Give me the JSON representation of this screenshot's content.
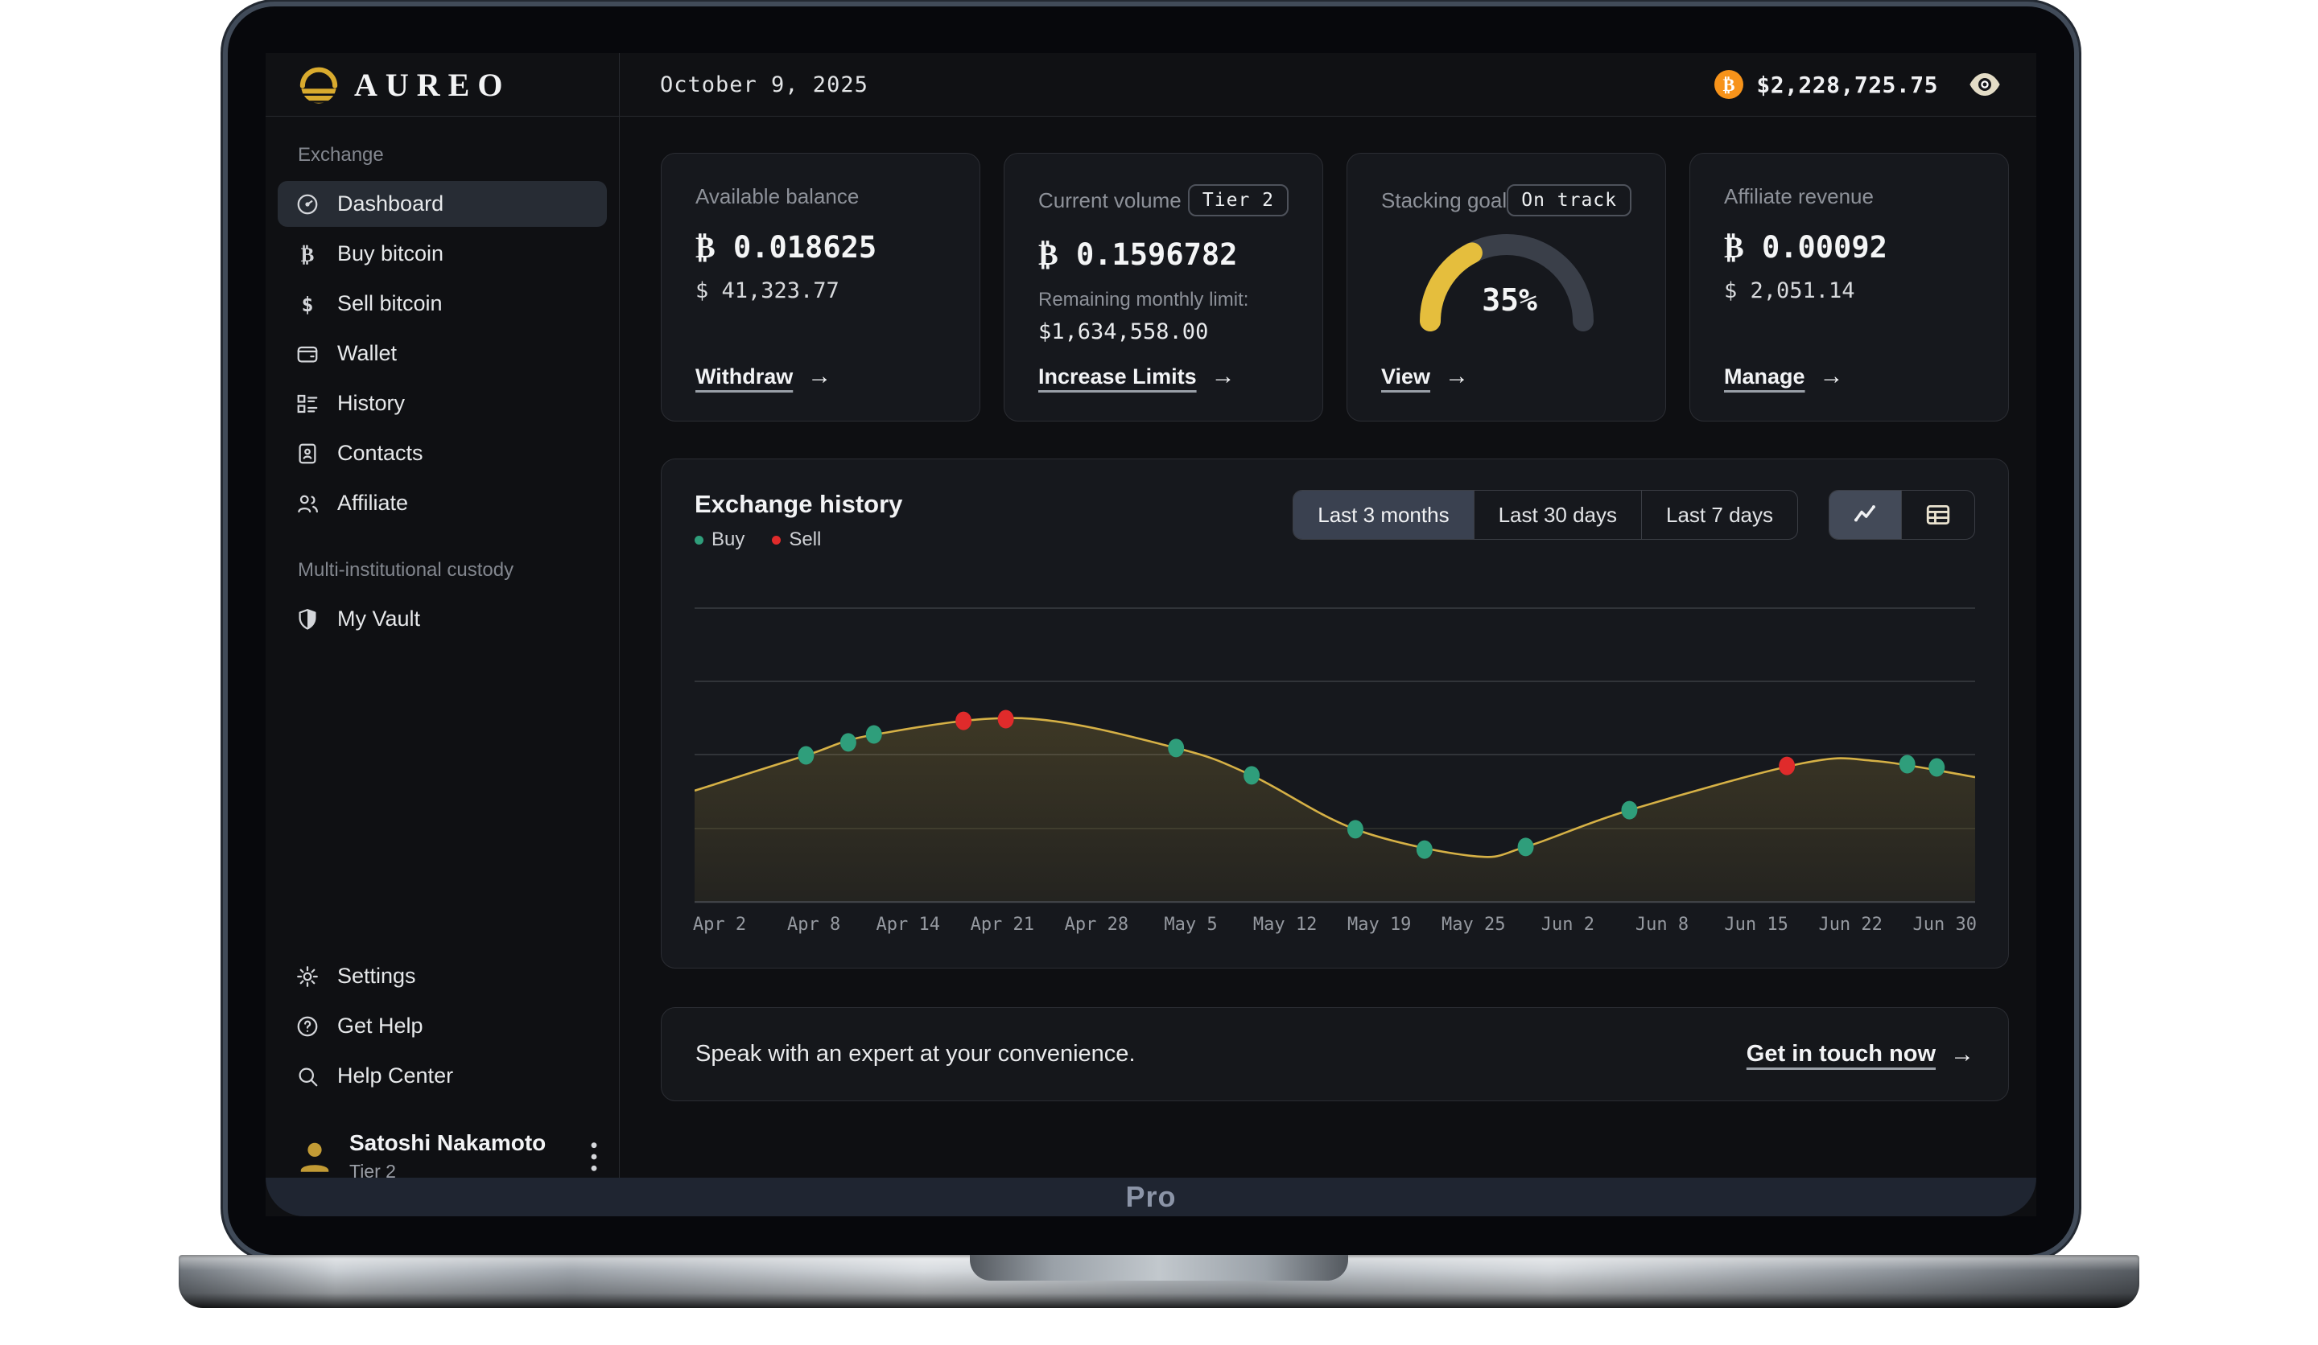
{
  "brand": {
    "name": "AUREO"
  },
  "topbar": {
    "date": "October 9, 2025",
    "total_usd": "$2,228,725.75"
  },
  "ui": {
    "arrow": "→"
  },
  "sidebar": {
    "sections": [
      {
        "label": "Exchange",
        "items": [
          {
            "label": "Dashboard"
          },
          {
            "label": "Buy bitcoin"
          },
          {
            "label": "Sell bitcoin"
          },
          {
            "label": "Wallet"
          },
          {
            "label": "History"
          },
          {
            "label": "Contacts"
          },
          {
            "label": "Affiliate"
          }
        ]
      },
      {
        "label": "Multi-institutional custody",
        "items": [
          {
            "label": "My Vault"
          }
        ]
      }
    ],
    "footer_items": [
      {
        "label": "Settings"
      },
      {
        "label": "Get Help"
      },
      {
        "label": "Help Center"
      }
    ],
    "user": {
      "name": "Satoshi Nakamoto",
      "tier": "Tier 2"
    }
  },
  "cards": [
    {
      "title": "Available balance",
      "btc": "₿ 0.018625",
      "usd": "$ 41,323.77",
      "link": "Withdraw"
    },
    {
      "title": "Current volume",
      "badge": "Tier 2",
      "btc": "₿ 0.1596782",
      "sub_label": "Remaining monthly limit:",
      "sub_value": "$1,634,558.00",
      "link": "Increase Limits"
    },
    {
      "title": "Stacking goal",
      "badge": "On track",
      "gauge_percent": 35,
      "gauge_label": "35%",
      "link": "View"
    },
    {
      "title": "Affiliate revenue",
      "btc": "₿ 0.00092",
      "usd": "$ 2,051.14",
      "link": "Manage"
    }
  ],
  "chart_panel": {
    "title": "Exchange history",
    "legend": [
      {
        "label": "Buy",
        "color": "#2f9e7b"
      },
      {
        "label": "Sell",
        "color": "#e02b2b"
      }
    ],
    "range_tabs": [
      {
        "label": "Last 3 months",
        "active": true
      },
      {
        "label": "Last 30 days",
        "active": false
      },
      {
        "label": "Last 7 days",
        "active": false
      }
    ]
  },
  "chart_data": {
    "type": "line",
    "title": "Exchange history",
    "x_labels": [
      "Apr 2",
      "Apr 8",
      "Apr 14",
      "Apr 21",
      "Apr 28",
      "May 5",
      "May 12",
      "May 19",
      "May 25",
      "Jun 2",
      "Jun 8",
      "Jun 15",
      "Jun 22",
      "Jun 30"
    ],
    "y_axis": "unlabeled; values are relative volume 0-100 (% of plot height)",
    "grid": true,
    "legend_position": "top-left",
    "line_color": "#d6b146",
    "area_fill_top": "rgba(218,183,70,0.20)",
    "area_fill_bottom": "rgba(218,183,70,0.07)",
    "curve": [
      {
        "x": 0.0,
        "v": 38.0
      },
      {
        "x": 0.087,
        "v": 50.0
      },
      {
        "x": 0.14,
        "v": 57.0
      },
      {
        "x": 0.257,
        "v": 62.6
      },
      {
        "x": 0.376,
        "v": 52.5
      },
      {
        "x": 0.435,
        "v": 43.2
      },
      {
        "x": 0.516,
        "v": 24.9
      },
      {
        "x": 0.608,
        "v": 15.8
      },
      {
        "x": 0.649,
        "v": 18.9
      },
      {
        "x": 0.73,
        "v": 31.4
      },
      {
        "x": 0.865,
        "v": 47.3
      },
      {
        "x": 0.922,
        "v": 48.1
      },
      {
        "x": 1.0,
        "v": 42.6
      }
    ],
    "points": {
      "buy": [
        {
          "date": "Apr 8",
          "x": 0.087,
          "v": 50.0
        },
        {
          "date": "Apr 10",
          "x": 0.12,
          "v": 54.4
        },
        {
          "date": "Apr 12",
          "x": 0.14,
          "v": 57.1
        },
        {
          "date": "May 4",
          "x": 0.376,
          "v": 52.5
        },
        {
          "date": "May 9",
          "x": 0.435,
          "v": 43.2
        },
        {
          "date": "May 17",
          "x": 0.516,
          "v": 24.9
        },
        {
          "date": "May 21",
          "x": 0.57,
          "v": 18.0
        },
        {
          "date": "May 28",
          "x": 0.649,
          "v": 18.9
        },
        {
          "date": "Jun 4",
          "x": 0.73,
          "v": 31.4
        },
        {
          "date": "Jun 25",
          "x": 0.947,
          "v": 47.0
        },
        {
          "date": "Jun 27",
          "x": 0.97,
          "v": 45.9
        }
      ],
      "sell": [
        {
          "date": "Apr 18",
          "x": 0.21,
          "v": 61.7
        },
        {
          "date": "Apr 21",
          "x": 0.243,
          "v": 62.3
        },
        {
          "date": "Jun 17",
          "x": 0.853,
          "v": 46.4
        }
      ]
    }
  },
  "cta": {
    "text": "Speak with an expert at your convenience.",
    "link": "Get in touch now"
  },
  "device": {
    "bottom_label": "Pro"
  },
  "colors": {
    "accent_gold": "#d9ab2e",
    "buy_green": "#2f9e7b",
    "sell_red": "#e02b2b",
    "bitcoin_orange": "#f7931a",
    "gauge_track": "#3a3f49",
    "gauge_fill": "#e5be3d"
  }
}
